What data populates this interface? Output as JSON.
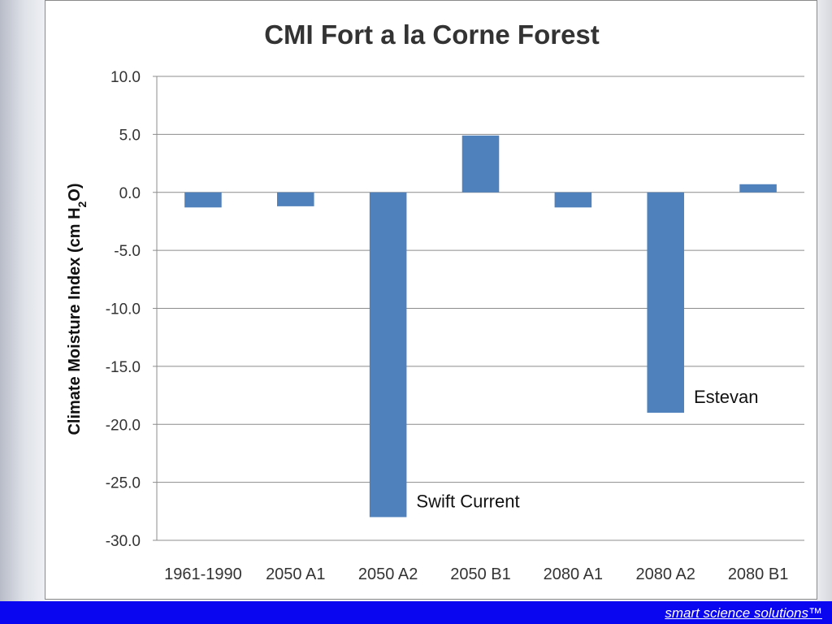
{
  "colors": {
    "bar": "#4f81bd",
    "grid": "#8c8c8c",
    "footer_bar": "#0b06f0",
    "footer_text": "#ffffff"
  },
  "footer": {
    "link_text": "smart science solutions™"
  },
  "chart_data": {
    "type": "bar",
    "title": "CMI Fort a la Corne Forest",
    "ylabel_main": "Climate Moisture Index (cm H",
    "ylabel_sub": "2",
    "ylabel_end": "O)",
    "xlabel": "",
    "categories": [
      "1961-1990",
      "2050 A1",
      "2050 A2",
      "2050 B1",
      "2080 A1",
      "2080 A2",
      "2080 B1"
    ],
    "values": [
      -1.3,
      -1.2,
      -28.0,
      4.9,
      -1.3,
      -19.0,
      0.7
    ],
    "ylim": [
      -30.0,
      10.0
    ],
    "yticks": [
      "10.0",
      "5.0",
      "0.0",
      "-5.0",
      "-10.0",
      "-15.0",
      "-20.0",
      "-25.0",
      "-30.0"
    ],
    "ytick_values": [
      10,
      5,
      0,
      -5,
      -10,
      -15,
      -20,
      -25,
      -30
    ],
    "grid": true,
    "legend": "none",
    "annotations": [
      {
        "text": "Swift Current",
        "category": "2050 A2"
      },
      {
        "text": "Estevan",
        "category": "2080 A2"
      }
    ]
  }
}
